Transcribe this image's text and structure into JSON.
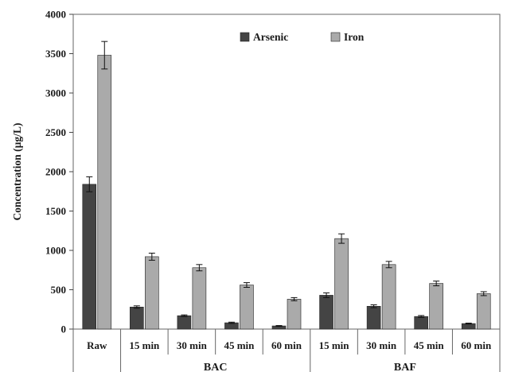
{
  "chart_data": {
    "type": "bar",
    "title": "",
    "xlabel": "",
    "ylabel": "Concentration (µg/L)",
    "ylim": [
      0,
      4000
    ],
    "yticks": [
      "0",
      "500",
      "1000",
      "1500",
      "2000",
      "2500",
      "3000",
      "3500",
      "4000"
    ],
    "categories": [
      "Raw",
      "15 min",
      "30 min",
      "45 min",
      "60 min",
      "15 min",
      "30 min",
      "45 min",
      "60 min"
    ],
    "groups": [
      {
        "label": "BAC",
        "start": 1,
        "end": 4
      },
      {
        "label": "BAF",
        "start": 5,
        "end": 8
      }
    ],
    "series": [
      {
        "name": "Arsenic",
        "color": "#444444",
        "values": [
          1840,
          280,
          170,
          80,
          40,
          430,
          290,
          160,
          70
        ],
        "errors": [
          95,
          15,
          10,
          8,
          5,
          30,
          18,
          12,
          6
        ]
      },
      {
        "name": "Iron",
        "color": "#aaaaaa",
        "values": [
          3480,
          920,
          780,
          560,
          380,
          1150,
          820,
          580,
          450
        ],
        "errors": [
          175,
          45,
          40,
          30,
          20,
          60,
          40,
          30,
          25
        ]
      }
    ],
    "legend_position": "top-center",
    "grid": false
  }
}
